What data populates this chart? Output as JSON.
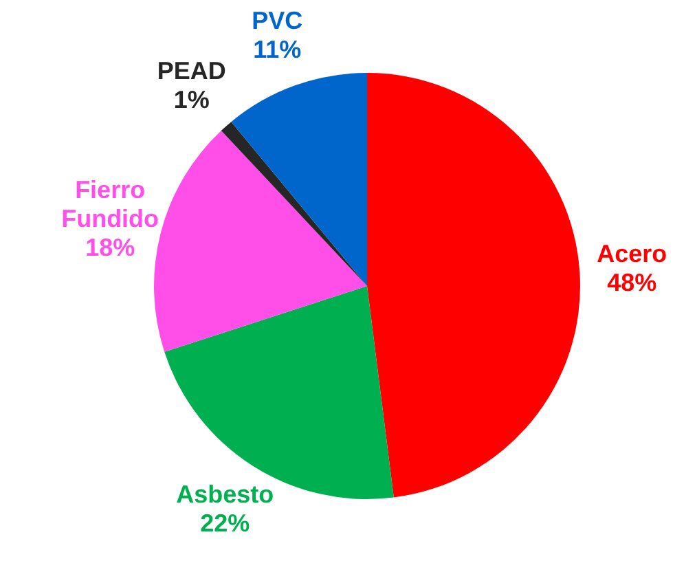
{
  "chart_data": {
    "type": "pie",
    "categories": [
      "Acero",
      "Asbesto",
      "Fierro Fundido",
      "PEAD",
      "PVC"
    ],
    "values": [
      48,
      22,
      18,
      1,
      11
    ],
    "value_labels": [
      "48%",
      "22%",
      "18%",
      "1%",
      "11%"
    ],
    "colors": [
      "#ff0000",
      "#00b050",
      "#ff4fe8",
      "#262626",
      "#0066cc"
    ]
  }
}
